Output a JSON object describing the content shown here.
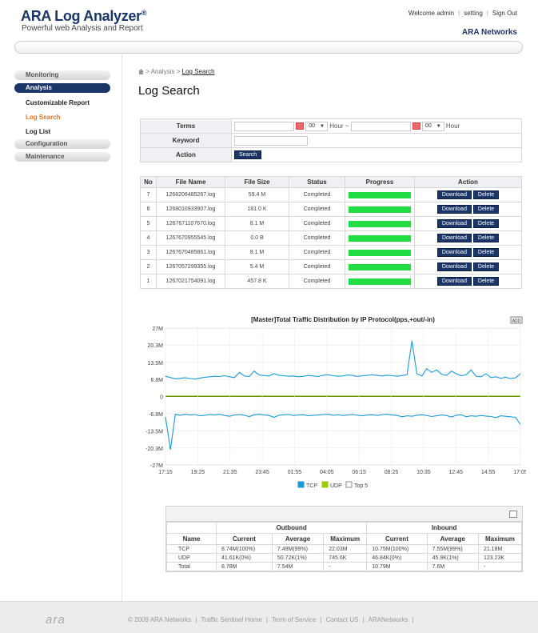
{
  "header": {
    "app_title": "ARA Log Analyzer",
    "app_title_mark": "®",
    "subtitle": "Powerful web Analysis and Report",
    "welcome": "Welcome admin",
    "setting": "setting",
    "signout": "Sign Out",
    "brand": "ARA Networks"
  },
  "sidebar": {
    "monitoring": "Monitoring",
    "analysis": "Analysis",
    "sub": [
      "Customizable Report",
      "Log Search",
      "Log List"
    ],
    "configuration": "Configuration",
    "maintenance": "Maintenance"
  },
  "breadcrumb": {
    "sep1": ">",
    "analysis": "Analysis",
    "sep2": ">",
    "current": "Log Search"
  },
  "page_title": "Log Search",
  "form": {
    "terms_label": "Terms",
    "hour_value": "00",
    "hour_label": "Hour ~",
    "hour_value2": "00",
    "hour_label2": "Hour",
    "keyword_label": "Keyword",
    "action_label": "Action",
    "search_button": "Search"
  },
  "log_table": {
    "headers": [
      "No",
      "File Name",
      "File Size",
      "Status",
      "Progress",
      "Action"
    ],
    "download_label": "Download",
    "delete_label": "Delete",
    "rows": [
      {
        "no": "7",
        "file": "1268206485267.log",
        "size": "59.4 M",
        "status": "Completed",
        "progress": 1.0
      },
      {
        "no": "6",
        "file": "1268010933907.log",
        "size": "181.0 K",
        "status": "Completed",
        "progress": 1.0
      },
      {
        "no": "5",
        "file": "1267671107670.log",
        "size": "8.1 M",
        "status": "Completed",
        "progress": 1.0
      },
      {
        "no": "4",
        "file": "1267670955545.log",
        "size": "0.0 B",
        "status": "Completed",
        "progress": 1.0
      },
      {
        "no": "3",
        "file": "1267670485861.log",
        "size": "8.1 M",
        "status": "Completed",
        "progress": 1.0
      },
      {
        "no": "2",
        "file": "1267057299355.log",
        "size": "5.4 M",
        "status": "Completed",
        "progress": 1.0
      },
      {
        "no": "1",
        "file": "1267021754091.log",
        "size": "457.8 K",
        "status": "Completed",
        "progress": 1.0
      }
    ]
  },
  "chart_data": {
    "type": "line",
    "title": "[Master]Total Traffic Distribution by IP Protocol(pps,+out/-in)",
    "add_label": "ADD",
    "y_ticks": [
      "27M",
      "20.3M",
      "13.5M",
      "6.8M",
      "0",
      "-6.8M",
      "-13.5M",
      "-20.3M",
      "-27M"
    ],
    "y_tick_values": [
      27,
      20.3,
      13.5,
      6.8,
      0,
      -6.8,
      -13.5,
      -20.3,
      -27
    ],
    "ylim": [
      -27,
      27
    ],
    "x_ticks": [
      "17:15",
      "19:25",
      "21:35",
      "23:45",
      "01:55",
      "04:05",
      "06:15",
      "08:25",
      "10:35",
      "12:45",
      "14:55",
      "17:05"
    ],
    "legend": [
      "TCP",
      "UDP",
      "Top 5"
    ],
    "legend_colors": [
      "#1a9ad6",
      "#99cc00",
      "#ffffff"
    ],
    "series": [
      {
        "name": "TCP",
        "color": "#1a9ad6",
        "values": [
          8.0,
          7.5,
          7.0,
          7.2,
          7.4,
          7.1,
          6.9,
          7.3,
          7.6,
          7.8,
          8.0,
          7.9,
          8.2,
          7.8,
          7.5,
          9.5,
          8.1,
          7.9,
          10.0,
          8.5,
          8.3,
          8.1,
          9.0,
          8.4,
          8.2,
          8.0,
          8.1,
          7.8,
          8.0,
          8.3,
          8.1,
          7.9,
          8.4,
          8.6,
          8.2,
          8.0,
          8.1,
          8.5,
          8.3,
          7.9,
          8.2,
          8.4,
          8.6,
          8.3,
          8.1,
          8.4,
          8.2,
          8.0,
          8.3,
          8.6,
          22.0,
          9.0,
          8.1,
          11.0,
          9.5,
          10.5,
          8.8,
          8.3,
          10.0,
          9.0,
          8.2,
          8.6,
          10.5,
          8.0,
          7.8,
          9.0,
          7.5,
          7.8,
          7.2,
          7.6,
          7.1,
          7.4,
          9.0
        ]
      },
      {
        "name": "TCP",
        "color": "#1a9ad6",
        "values": [
          -8.0,
          -21.0,
          -7.0,
          -7.4,
          -7.0,
          -7.3,
          -7.1,
          -7.6,
          -7.4,
          -7.1,
          -7.3,
          -7.0,
          -7.5,
          -7.8,
          -7.3,
          -7.1,
          -7.4,
          -7.9,
          -7.2,
          -7.0,
          -7.3,
          -7.5,
          -8.2,
          -7.4,
          -7.2,
          -7.1,
          -7.5,
          -7.3,
          -7.2,
          -7.6,
          -7.4,
          -7.3,
          -7.1,
          -7.0,
          -7.4,
          -7.2,
          -7.5,
          -7.3,
          -7.1,
          -7.4,
          -7.6,
          -7.3,
          -7.2,
          -7.5,
          -7.1,
          -7.0,
          -7.3,
          -7.5,
          -8.0,
          -7.6,
          -7.8,
          -7.4,
          -7.2,
          -7.5,
          -7.9,
          -7.6,
          -7.3,
          -7.5,
          -8.1,
          -7.4,
          -7.2,
          -8.0,
          -7.6,
          -7.8,
          -7.5,
          -7.7,
          -7.9,
          -8.3,
          -7.6,
          -7.8,
          -8.0,
          -8.2,
          -11.0
        ]
      },
      {
        "name": "UDP",
        "color": "#99cc00",
        "values": [
          0.2,
          0.2,
          0.2,
          0.2,
          0.2,
          0.2,
          0.2,
          0.2,
          0.2,
          0.2,
          0.2,
          0.2,
          0.2,
          0.2,
          0.2,
          0.2,
          0.2,
          0.2,
          0.2,
          0.2,
          0.2,
          0.2,
          0.2,
          0.2,
          0.2,
          0.2,
          0.2,
          0.2,
          0.2,
          0.2,
          0.2,
          0.2,
          0.2,
          0.2,
          0.2,
          0.2,
          0.2,
          0.2,
          0.2,
          0.2,
          0.2,
          0.2,
          0.2,
          0.2,
          0.2,
          0.2,
          0.2,
          0.2,
          0.2,
          0.2,
          0.2,
          0.2,
          0.2,
          0.2,
          0.2,
          0.2,
          0.2,
          0.2,
          0.2,
          0.2,
          0.2,
          0.2,
          0.2,
          0.2,
          0.2,
          0.2,
          0.2,
          0.2,
          0.2,
          0.2,
          0.2,
          0.2,
          0.2
        ]
      }
    ]
  },
  "stats": {
    "outbound": "Outbound",
    "inbound": "Inbound",
    "columns": [
      "Name",
      "Current",
      "Average",
      "Maximum",
      "Current",
      "Average",
      "Maximum"
    ],
    "rows": [
      [
        "TCP",
        "8.74M(100%)",
        "7.49M(99%)",
        "22.03M",
        "10.75M(100%)",
        "7.55M(99%)",
        "21.18M"
      ],
      [
        "UDP",
        "41.61K(0%)",
        "50.72K(1%)",
        "745.6K",
        "46.84K(0%)",
        "45.9K(1%)",
        "123.23K"
      ],
      [
        "Total",
        "8.78M",
        "7.54M",
        "-",
        "10.79M",
        "7.6M",
        "-"
      ]
    ]
  },
  "footer": {
    "logo": "ara",
    "links": [
      "© 2009 ARA Networks",
      "Traffic Sentinel Home",
      "Term of Service",
      "Contact US",
      "ARANetworks"
    ]
  }
}
